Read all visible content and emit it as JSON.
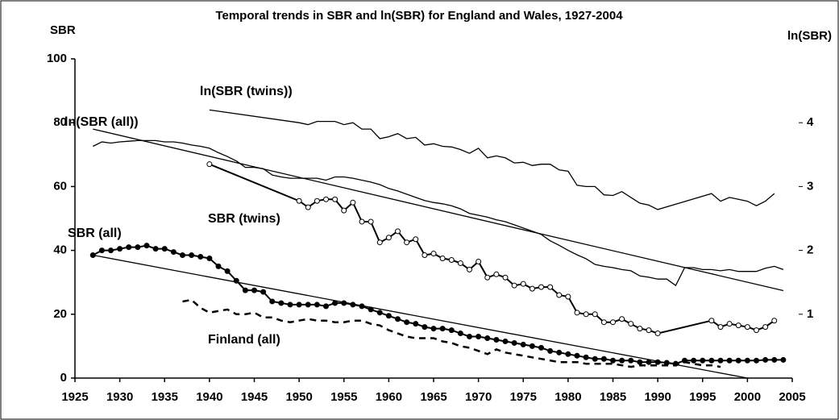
{
  "chart_data": {
    "type": "line",
    "title": "Temporal trends in SBR and ln(SBR) for England and Wales, 1927-2004",
    "y_label": "SBR",
    "y2_label": "ln(SBR)",
    "xlim": [
      1925,
      2005
    ],
    "xticks": [
      1925,
      1930,
      1935,
      1940,
      1945,
      1950,
      1955,
      1960,
      1965,
      1970,
      1975,
      1980,
      1985,
      1990,
      1995,
      2000,
      2005
    ],
    "ylim": [
      0,
      100
    ],
    "yticks": [
      0,
      20,
      40,
      60,
      80,
      100
    ],
    "y2lim": [
      0,
      5
    ],
    "y2ticks": [
      1,
      2,
      3,
      4
    ],
    "annotations": [
      "ln(SBR (twins))",
      "ln(SBR (all))",
      "SBR (twins)",
      "SBR (all)",
      "Finland (all)"
    ],
    "series": [
      {
        "name": "SBR (all)",
        "color": "#000000",
        "marker": "filled",
        "width": 2,
        "x": [
          1927,
          1928,
          1929,
          1930,
          1931,
          1932,
          1933,
          1934,
          1935,
          1936,
          1937,
          1938,
          1939,
          1940,
          1941,
          1942,
          1943,
          1944,
          1945,
          1946,
          1947,
          1948,
          1949,
          1950,
          1951,
          1952,
          1953,
          1954,
          1955,
          1956,
          1957,
          1958,
          1959,
          1960,
          1961,
          1962,
          1963,
          1964,
          1965,
          1966,
          1967,
          1968,
          1969,
          1970,
          1971,
          1972,
          1973,
          1974,
          1975,
          1976,
          1977,
          1978,
          1979,
          1980,
          1981,
          1982,
          1983,
          1984,
          1985,
          1986,
          1987,
          1988,
          1989,
          1990,
          1991,
          1992,
          1993,
          1994,
          1995,
          1996,
          1997,
          1998,
          1999,
          2000,
          2001,
          2002,
          2003,
          2004
        ],
        "values": [
          38.5,
          40,
          40,
          40.5,
          41,
          41,
          41.5,
          40.5,
          40.5,
          39.5,
          38.5,
          38.5,
          38,
          37.5,
          35,
          33.5,
          30.5,
          27.5,
          27.5,
          27,
          24,
          23.5,
          23,
          23,
          23,
          23,
          22.5,
          23.5,
          23.5,
          23,
          22.5,
          21.5,
          20.5,
          19.5,
          18.5,
          17.5,
          17,
          16,
          15.5,
          15.5,
          15,
          14,
          13,
          13,
          12.5,
          12,
          11.5,
          11,
          10.5,
          10,
          9.5,
          8.5,
          8,
          7.5,
          7,
          6.5,
          6,
          6,
          5.5,
          5.5,
          5.5,
          5,
          5,
          5,
          4.8,
          4.5,
          5.5,
          5.5,
          5.5,
          5.5,
          5.5,
          5.5,
          5.5,
          5.5,
          5.5,
          5.7,
          5.7,
          5.7
        ]
      },
      {
        "name": "SBR (twins)",
        "color": "#000000",
        "marker": "open",
        "width": 2,
        "x": [
          1940,
          1950,
          1951,
          1952,
          1953,
          1954,
          1955,
          1956,
          1957,
          1958,
          1959,
          1960,
          1961,
          1962,
          1963,
          1964,
          1965,
          1966,
          1967,
          1968,
          1969,
          1970,
          1971,
          1972,
          1973,
          1974,
          1975,
          1976,
          1977,
          1978,
          1979,
          1980,
          1981,
          1982,
          1983,
          1984,
          1985,
          1986,
          1987,
          1988,
          1989,
          1990,
          1996,
          1997,
          1998,
          1999,
          2000,
          2001,
          2002,
          2003
        ],
        "values": [
          67,
          55.5,
          53.5,
          55.5,
          56,
          56,
          52.5,
          55,
          49,
          49,
          42.5,
          44,
          46,
          42.5,
          43.5,
          38.5,
          39,
          37.5,
          37,
          36,
          34,
          36.5,
          31.5,
          32.5,
          31.5,
          29,
          29.5,
          28,
          28.5,
          28.5,
          26,
          25.5,
          20.5,
          20,
          20,
          17.5,
          17.5,
          18.5,
          17,
          15.5,
          15,
          14,
          18,
          16,
          17,
          16.5,
          16,
          15,
          16,
          18
        ]
      },
      {
        "name": "ln(SBR (all))",
        "color": "#000000",
        "axis": "y2",
        "width": 1.3,
        "x": [
          1927,
          1928,
          1929,
          1930,
          1931,
          1932,
          1933,
          1934,
          1935,
          1936,
          1937,
          1938,
          1939,
          1940,
          1941,
          1942,
          1943,
          1944,
          1945,
          1946,
          1947,
          1948,
          1949,
          1950,
          1951,
          1952,
          1953,
          1954,
          1955,
          1956,
          1957,
          1958,
          1959,
          1960,
          1961,
          1962,
          1963,
          1964,
          1965,
          1966,
          1967,
          1968,
          1969,
          1970,
          1971,
          1972,
          1973,
          1974,
          1975,
          1976,
          1977,
          1978,
          1979,
          1980,
          1981,
          1982,
          1983,
          1984,
          1985,
          1986,
          1987,
          1988,
          1989,
          1990,
          1991,
          1992,
          1993,
          1994,
          1995,
          1996,
          1997,
          1998,
          1999,
          2000,
          2001,
          2002,
          2003,
          2004
        ],
        "values": [
          3.63,
          3.7,
          3.68,
          3.7,
          3.71,
          3.72,
          3.72,
          3.72,
          3.7,
          3.7,
          3.68,
          3.65,
          3.63,
          3.6,
          3.53,
          3.47,
          3.4,
          3.3,
          3.3,
          3.28,
          3.18,
          3.15,
          3.13,
          3.13,
          3.13,
          3.13,
          3.1,
          3.15,
          3.15,
          3.13,
          3.1,
          3.07,
          3.03,
          2.97,
          2.93,
          2.88,
          2.83,
          2.78,
          2.75,
          2.73,
          2.7,
          2.65,
          2.58,
          2.55,
          2.52,
          2.48,
          2.45,
          2.4,
          2.35,
          2.3,
          2.25,
          2.15,
          2.08,
          2,
          1.93,
          1.87,
          1.78,
          1.75,
          1.73,
          1.7,
          1.68,
          1.6,
          1.58,
          1.55,
          1.55,
          1.45,
          1.73,
          1.73,
          1.7,
          1.7,
          1.68,
          1.7,
          1.67,
          1.67,
          1.67,
          1.72,
          1.75,
          1.7
        ]
      },
      {
        "name": "ln(SBR (twins))",
        "color": "#000000",
        "axis": "y2",
        "width": 1.3,
        "x": [
          1940,
          1950,
          1951,
          1952,
          1953,
          1954,
          1955,
          1956,
          1957,
          1958,
          1959,
          1960,
          1961,
          1962,
          1963,
          1964,
          1965,
          1966,
          1967,
          1968,
          1969,
          1970,
          1971,
          1972,
          1973,
          1974,
          1975,
          1976,
          1977,
          1978,
          1979,
          1980,
          1981,
          1982,
          1983,
          1984,
          1985,
          1986,
          1987,
          1988,
          1989,
          1990,
          1996,
          1997,
          1998,
          1999,
          2000,
          2001,
          2002,
          2003
        ],
        "values": [
          4.2,
          4,
          3.97,
          4.02,
          4.02,
          4.02,
          3.97,
          4,
          3.9,
          3.9,
          3.75,
          3.78,
          3.83,
          3.75,
          3.77,
          3.65,
          3.67,
          3.63,
          3.62,
          3.58,
          3.52,
          3.6,
          3.45,
          3.48,
          3.45,
          3.37,
          3.38,
          3.33,
          3.35,
          3.35,
          3.26,
          3.24,
          3.02,
          3,
          3,
          2.87,
          2.86,
          2.92,
          2.83,
          2.74,
          2.71,
          2.64,
          2.89,
          2.77,
          2.83,
          2.8,
          2.77,
          2.7,
          2.77,
          2.89
        ]
      },
      {
        "name": "Finland (all)",
        "color": "#000000",
        "dash": true,
        "width": 2.5,
        "x": [
          1937,
          1938,
          1939,
          1940,
          1941,
          1942,
          1943,
          1944,
          1945,
          1946,
          1947,
          1948,
          1949,
          1950,
          1951,
          1952,
          1953,
          1954,
          1955,
          1956,
          1957,
          1958,
          1959,
          1960,
          1961,
          1962,
          1963,
          1964,
          1965,
          1966,
          1967,
          1968,
          1969,
          1970,
          1971,
          1972,
          1973,
          1974,
          1975,
          1976,
          1977,
          1978,
          1979,
          1980,
          1981,
          1982,
          1983,
          1984,
          1985,
          1986,
          1987,
          1988,
          1989,
          1990,
          1991,
          1992,
          1993,
          1994,
          1995,
          1996,
          1997
        ],
        "values": [
          24,
          24.5,
          22,
          20.5,
          21,
          21.5,
          20,
          20,
          20.5,
          19,
          19,
          18,
          17.5,
          18,
          18.5,
          18,
          18,
          17.5,
          17.5,
          18,
          18,
          17,
          16.5,
          15,
          14,
          13,
          12.5,
          12.5,
          12.5,
          11.5,
          11,
          10,
          9.5,
          8.5,
          7.5,
          9,
          8,
          7.5,
          7,
          6.5,
          6,
          5.5,
          5,
          5,
          5,
          4.5,
          4.5,
          4.5,
          4.5,
          4,
          3.5,
          4,
          4,
          4,
          4,
          4,
          5,
          4.5,
          4,
          4,
          3.5
        ]
      },
      {
        "color": "#000000",
        "width": 1.3,
        "x": [
          1927,
          2000
        ],
        "values": [
          38.5,
          0
        ]
      },
      {
        "color": "#000000",
        "width": 1.3,
        "axis": "y2",
        "x": [
          1927,
          2004
        ],
        "values": [
          3.9,
          1.37
        ]
      }
    ]
  }
}
